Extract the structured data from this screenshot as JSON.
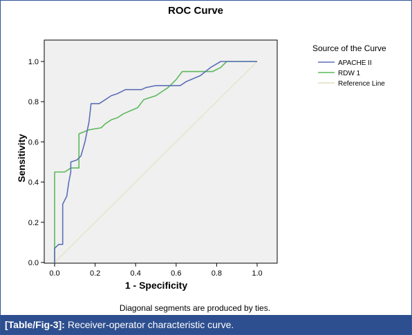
{
  "caption": {
    "tag": "[Table/Fig-3]:",
    "text": "Receiver-operator characteristic curve."
  },
  "chart_data": {
    "type": "line",
    "title": "ROC Curve",
    "xlabel": "1 - Specificity",
    "ylabel": "Sensitivity",
    "xlim": [
      0,
      1
    ],
    "ylim": [
      0,
      1
    ],
    "xticks": [
      "0.0",
      "0.2",
      "0.4",
      "0.6",
      "0.8",
      "1.0"
    ],
    "yticks": [
      "0.0",
      "0.2",
      "0.4",
      "0.6",
      "0.8",
      "1.0"
    ],
    "legend_title": "Source of the Curve",
    "legend_position": "right",
    "footnote": "Diagonal segments are produced by ties.",
    "plot_background": "#f0f0f0",
    "series": [
      {
        "name": "APACHE II",
        "color": "#5b6fb5",
        "x": [
          0.0,
          0.0,
          0.02,
          0.04,
          0.04,
          0.06,
          0.07,
          0.08,
          0.08,
          0.11,
          0.13,
          0.15,
          0.17,
          0.18,
          0.22,
          0.25,
          0.28,
          0.31,
          0.35,
          0.38,
          0.43,
          0.45,
          0.5,
          0.55,
          0.6,
          0.62,
          0.65,
          0.72,
          0.77,
          0.82,
          0.83,
          1.0
        ],
        "y": [
          0.0,
          0.07,
          0.09,
          0.09,
          0.29,
          0.33,
          0.4,
          0.45,
          0.5,
          0.51,
          0.53,
          0.6,
          0.7,
          0.79,
          0.79,
          0.81,
          0.83,
          0.84,
          0.86,
          0.86,
          0.86,
          0.87,
          0.88,
          0.88,
          0.88,
          0.88,
          0.9,
          0.93,
          0.97,
          1.0,
          1.0,
          1.0
        ]
      },
      {
        "name": "RDW 1",
        "color": "#5cb85c",
        "x": [
          0.0,
          0.0,
          0.05,
          0.08,
          0.12,
          0.12,
          0.17,
          0.23,
          0.25,
          0.28,
          0.31,
          0.34,
          0.41,
          0.44,
          0.5,
          0.56,
          0.6,
          0.63,
          0.65,
          0.72,
          0.78,
          0.82,
          0.85,
          0.85,
          1.0
        ],
        "y": [
          0.0,
          0.45,
          0.45,
          0.47,
          0.47,
          0.64,
          0.66,
          0.67,
          0.69,
          0.71,
          0.72,
          0.74,
          0.77,
          0.81,
          0.83,
          0.87,
          0.91,
          0.95,
          0.95,
          0.95,
          0.95,
          0.97,
          1.0,
          1.0,
          1.0
        ]
      },
      {
        "name": "Reference Line",
        "color": "#e3dfb8",
        "x": [
          0.0,
          1.0
        ],
        "y": [
          0.0,
          1.0
        ]
      }
    ]
  }
}
